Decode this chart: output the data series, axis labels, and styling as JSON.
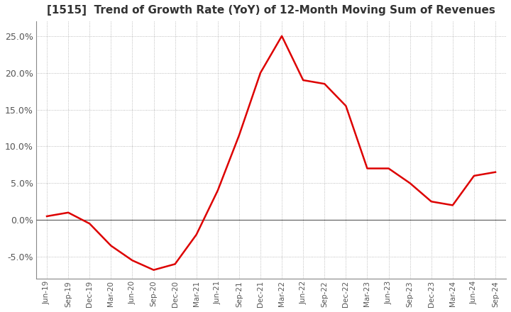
{
  "title": "[1515]  Trend of Growth Rate (YoY) of 12-Month Moving Sum of Revenues",
  "title_fontsize": 11,
  "ylim": [
    -0.08,
    0.27
  ],
  "yticks": [
    -0.05,
    0.0,
    0.05,
    0.1,
    0.15,
    0.2,
    0.25
  ],
  "ytick_labels": [
    "-5.0%",
    "0.0%",
    "5.0%",
    "10.0%",
    "15.0%",
    "20.0%",
    "25.0%"
  ],
  "background_color": "#ffffff",
  "grid_color": "#aaaaaa",
  "line_color": "#dd0000",
  "zero_line_color": "#666666",
  "x_labels": [
    "Jun-19",
    "Sep-19",
    "Dec-19",
    "Mar-20",
    "Jun-20",
    "Sep-20",
    "Dec-20",
    "Mar-21",
    "Jun-21",
    "Sep-21",
    "Dec-21",
    "Mar-22",
    "Jun-22",
    "Sep-22",
    "Dec-22",
    "Mar-23",
    "Jun-23",
    "Sep-23",
    "Dec-23",
    "Mar-24",
    "Jun-24",
    "Sep-24"
  ],
  "y_values": [
    0.005,
    0.01,
    -0.005,
    -0.035,
    -0.055,
    -0.068,
    -0.06,
    -0.02,
    0.04,
    0.115,
    0.2,
    0.25,
    0.19,
    0.185,
    0.155,
    0.07,
    0.07,
    0.05,
    0.025,
    0.02,
    0.06,
    0.065
  ]
}
